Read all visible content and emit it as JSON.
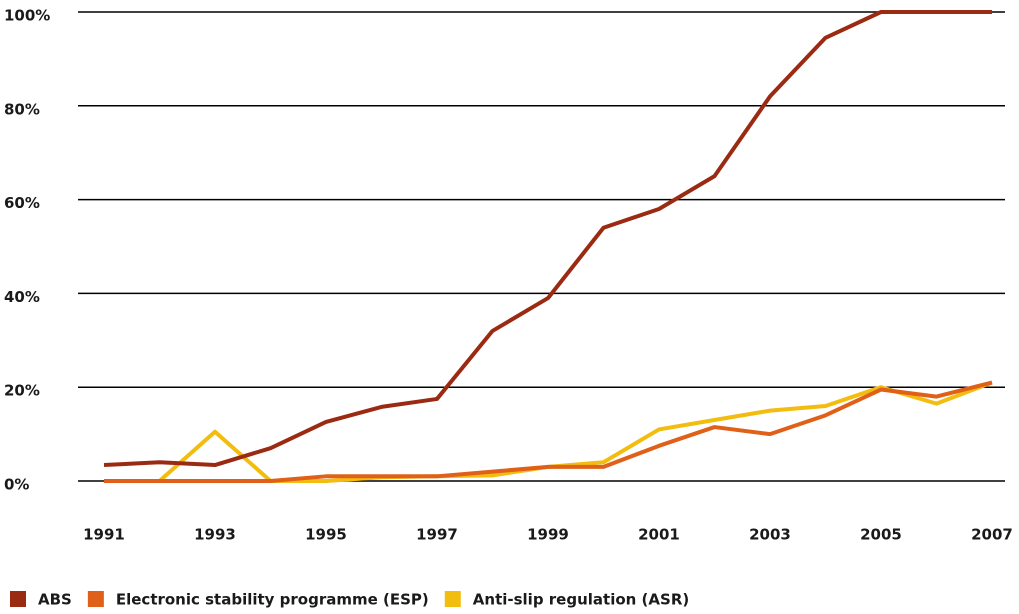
{
  "chart_data": {
    "type": "line",
    "x": [
      1991,
      1992,
      1993,
      1994,
      1995,
      1996,
      1997,
      1998,
      1999,
      2000,
      2001,
      2002,
      2003,
      2004,
      2005,
      2006,
      2007
    ],
    "xlim": [
      1991,
      2007
    ],
    "xticks": [
      1991,
      1993,
      1995,
      1997,
      1999,
      2001,
      2003,
      2005,
      2007
    ],
    "ylim": [
      0,
      100
    ],
    "yticks": [
      {
        "value": 0,
        "label": "0%"
      },
      {
        "value": 20,
        "label": "20%"
      },
      {
        "value": 40,
        "label": "40%"
      },
      {
        "value": 60,
        "label": "60%"
      },
      {
        "value": 80,
        "label": "80%"
      },
      {
        "value": 100,
        "label": "100%"
      }
    ],
    "grid": true,
    "legend": "bottom",
    "series": [
      {
        "name": "ABS",
        "color": "#9b2a12",
        "values": [
          3.4,
          4,
          3.4,
          7,
          12.6,
          15.8,
          17.5,
          32,
          39,
          54,
          58,
          65,
          82,
          94.5,
          100,
          100,
          100
        ]
      },
      {
        "name": "Electronic stability programme (ESP)",
        "color": "#e0601a",
        "values": [
          0,
          0,
          0,
          0,
          1,
          1,
          1,
          2,
          3,
          3,
          7.5,
          11.5,
          10,
          14,
          19.5,
          18,
          21
        ]
      },
      {
        "name": "Anti-slip regulation (ASR)",
        "color": "#f2bd0f",
        "values": [
          0,
          0,
          10.5,
          0,
          0,
          0.8,
          1,
          1.2,
          3,
          4,
          11,
          13,
          15,
          16,
          20,
          16.5,
          21
        ]
      }
    ]
  }
}
